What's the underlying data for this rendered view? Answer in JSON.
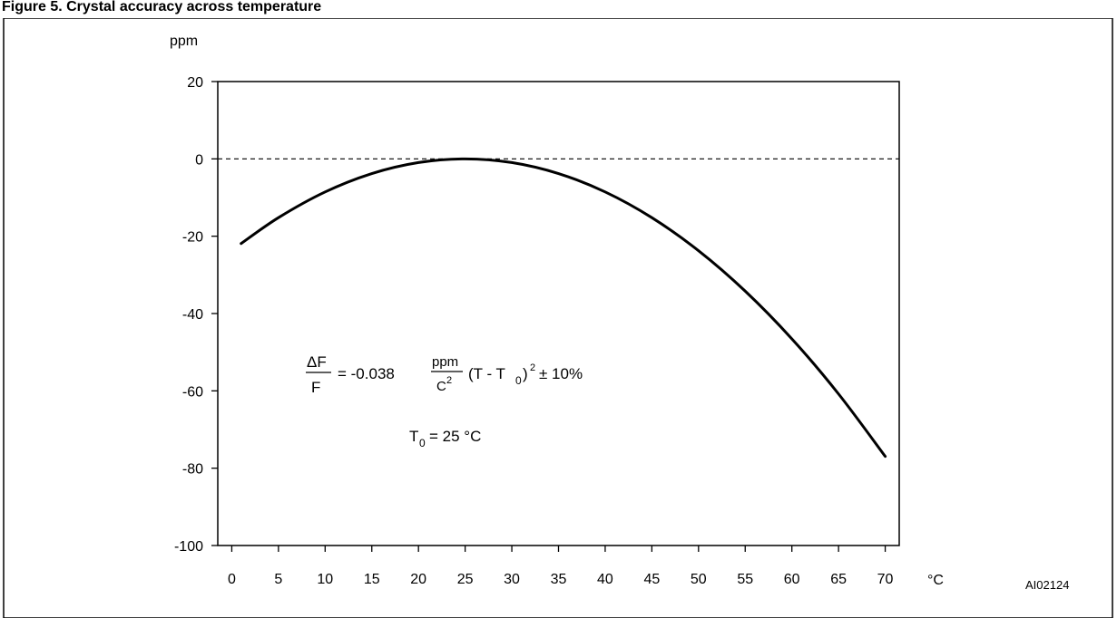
{
  "header_fragment": "Figure 5. Crystal accuracy across temperature",
  "chart_data": {
    "type": "line",
    "title": "",
    "xlabel": "°C",
    "ylabel": "ppm",
    "xlim": [
      -1.5,
      71.5
    ],
    "ylim": [
      -100,
      20
    ],
    "x_ticks": [
      0,
      5,
      10,
      15,
      20,
      25,
      30,
      35,
      40,
      45,
      50,
      55,
      60,
      65,
      70
    ],
    "y_ticks": [
      20,
      0,
      -20,
      -40,
      -60,
      -80,
      -100
    ],
    "grid": false,
    "reference_line": {
      "y": 0,
      "style": "dashed"
    },
    "series": [
      {
        "x": [
          1,
          5,
          10,
          15,
          20,
          25,
          30,
          35,
          40,
          45,
          50,
          55,
          60,
          65,
          70
        ],
        "y": [
          -21.9,
          -15.2,
          -8.55,
          -3.8,
          -0.95,
          0,
          -0.95,
          -3.8,
          -8.55,
          -15.2,
          -23.75,
          -34.2,
          -46.55,
          -60.8,
          -76.95
        ]
      }
    ],
    "annotations": {
      "formula": {
        "delta_num": "ΔF",
        "delta_den": "F",
        "equals": "= -0.038",
        "unit_num": "ppm",
        "unit_den": "C",
        "unit_den_sup": "2",
        "term_open": "(T - T",
        "term_sub": "0",
        "term_close": ")",
        "term_sup": "2",
        "tolerance": "± 10%"
      },
      "t0": {
        "base": "T",
        "sub": "0",
        "rest": "= 25 °C"
      }
    },
    "figure_code": "AI02124"
  }
}
